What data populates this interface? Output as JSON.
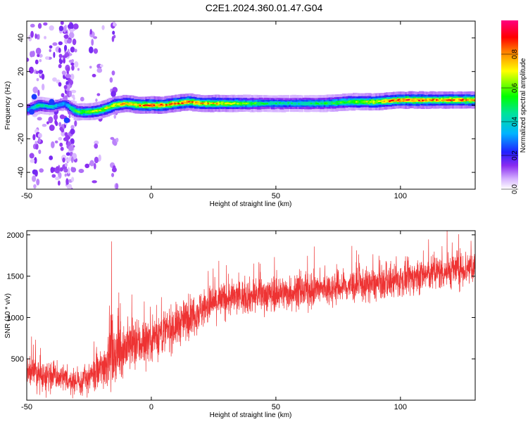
{
  "title": "C2E1.2024.360.01.47.G04",
  "colors": {
    "background": "#ffffff",
    "snr_line": "#ee3333",
    "spectrum_scatter": "#b060f0",
    "colormap": [
      "#ffffff",
      "#e0c0ff",
      "#a040ff",
      "#2020ff",
      "#00d0ff",
      "#00ff60",
      "#ffff00",
      "#ff6000",
      "#ff0000",
      "#ff00a0"
    ]
  },
  "chart_data": [
    {
      "type": "heatmap",
      "title": "",
      "xlabel": "Height of straight line (km)",
      "ylabel": "Frequency (Hz)",
      "xlim": [
        -50,
        130
      ],
      "ylim": [
        -50,
        50
      ],
      "xticks": [
        "-50",
        "0",
        "50",
        "100"
      ],
      "yticks": [
        "-40",
        "-20",
        "0",
        "20",
        "40"
      ],
      "ridge": {
        "description_free": true,
        "x": [
          -50,
          -45,
          -40,
          -35,
          -30,
          -25,
          -20,
          -15,
          -10,
          -5,
          0,
          5,
          10,
          15,
          20,
          30,
          40,
          50,
          60,
          70,
          80,
          90,
          100,
          110,
          120,
          130
        ],
        "frequency": [
          -3,
          0,
          -1,
          1,
          -4,
          -4,
          -3,
          0,
          1,
          0,
          0,
          0,
          1,
          2,
          1,
          1,
          1,
          1,
          1,
          1,
          2,
          2,
          3,
          3,
          3,
          3
        ],
        "amplitude": [
          0.3,
          0.5,
          0.4,
          0.3,
          0.55,
          0.6,
          0.65,
          0.7,
          0.75,
          0.8,
          0.85,
          0.8,
          0.8,
          0.8,
          0.75,
          0.7,
          0.55,
          0.45,
          0.45,
          0.5,
          0.6,
          0.7,
          0.85,
          0.8,
          0.8,
          0.8
        ]
      },
      "colorbar": {
        "label": "Normalized spectral amplitude",
        "range": [
          0,
          1
        ],
        "ticks": [
          "0.0",
          "0.2",
          "0.4",
          "0.6",
          "0.8"
        ]
      }
    },
    {
      "type": "line",
      "title": "",
      "xlabel": "Height of straight line (km)",
      "ylabel": "SNR (10 * v/v)",
      "xlim": [
        -50,
        130
      ],
      "ylim": [
        0,
        2050
      ],
      "xticks": [
        "-50",
        "0",
        "50",
        "100"
      ],
      "yticks": [
        "500",
        "1000",
        "1500",
        "2000"
      ],
      "series": [
        {
          "x": [
            -50,
            -45,
            -40,
            -35,
            -30,
            -25,
            -20,
            -18,
            -17,
            -15,
            -10,
            -5,
            0,
            5,
            10,
            15,
            20,
            25,
            30,
            35,
            40,
            50,
            60,
            70,
            80,
            90,
            100,
            110,
            120,
            130
          ],
          "mean": [
            350,
            320,
            300,
            250,
            220,
            260,
            380,
            450,
            650,
            550,
            650,
            680,
            760,
            820,
            900,
            1000,
            1100,
            1180,
            1220,
            1250,
            1260,
            1290,
            1310,
            1350,
            1380,
            1400,
            1450,
            1520,
            1570,
            1620
          ],
          "spread": [
            220,
            220,
            200,
            180,
            160,
            200,
            280,
            330,
            500,
            380,
            350,
            330,
            320,
            300,
            280,
            270,
            260,
            250,
            240,
            230,
            230,
            230,
            220,
            220,
            220,
            220,
            220,
            230,
            240,
            250
          ]
        }
      ],
      "annotations": [
        {
          "x": -16,
          "y": 1920,
          "text": ""
        }
      ]
    }
  ]
}
